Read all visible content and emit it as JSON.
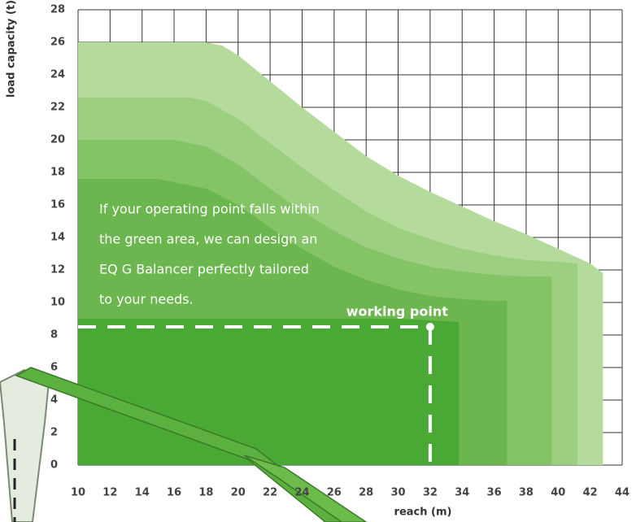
{
  "chart_data": {
    "type": "area",
    "ylabel": "load capacity (t)",
    "xlabel": "reach (m)",
    "xlim": [
      10,
      44
    ],
    "ylim": [
      0,
      28
    ],
    "xticks": [
      10,
      12,
      14,
      16,
      18,
      20,
      22,
      24,
      26,
      28,
      30,
      32,
      34,
      36,
      38,
      40,
      42,
      44
    ],
    "yticks": [
      0,
      2,
      4,
      6,
      8,
      10,
      12,
      14,
      16,
      18,
      20,
      22,
      24,
      26,
      28
    ],
    "grid": true,
    "series": [
      {
        "color": "#b4db9c",
        "x": [
          10,
          18,
          19,
          20,
          22,
          24,
          26,
          28,
          30,
          32,
          34,
          36,
          38,
          40,
          42,
          42.8
        ],
        "values": [
          26,
          26,
          25.8,
          25.2,
          23.6,
          22,
          20.5,
          19,
          17.8,
          16.8,
          15.9,
          15,
          14.2,
          13.3,
          12.4,
          11.8
        ]
      },
      {
        "color": "#9ccf80",
        "x": [
          10,
          17,
          18,
          20,
          22,
          24,
          26,
          28,
          30,
          32,
          34,
          36,
          38,
          40,
          41.2
        ],
        "values": [
          22.6,
          22.6,
          22.4,
          21.3,
          19.8,
          18.3,
          16.9,
          15.6,
          14.6,
          13.9,
          13.3,
          12.9,
          12.6,
          12.5,
          12.4
        ]
      },
      {
        "color": "#85c367",
        "x": [
          10,
          16,
          18,
          20,
          22,
          24,
          26,
          28,
          30,
          32,
          34,
          36,
          38,
          39.6
        ],
        "values": [
          20,
          20,
          19.6,
          18.5,
          17,
          15.6,
          14.4,
          13.4,
          12.7,
          12.2,
          11.9,
          11.7,
          11.6,
          11.6
        ]
      },
      {
        "color": "#6bb64e",
        "x": [
          10,
          15,
          18,
          20,
          22,
          24,
          26,
          28,
          30,
          32,
          34,
          36,
          36.8
        ],
        "values": [
          17.6,
          17.6,
          17,
          16,
          14.6,
          13.3,
          12.2,
          11.4,
          10.8,
          10.4,
          10.2,
          10.1,
          10.1
        ]
      },
      {
        "color": "#4aa834",
        "x": [
          10,
          30,
          32,
          33.8
        ],
        "values": [
          9,
          9,
          8.9,
          8.8
        ]
      }
    ],
    "annotation": [
      "If your operating point falls within",
      "the green area, we can design an",
      "EQ G Balancer perfectly tailored",
      "to your needs."
    ],
    "working_point": {
      "label": "working point",
      "x": 32,
      "y": 8.5
    }
  }
}
